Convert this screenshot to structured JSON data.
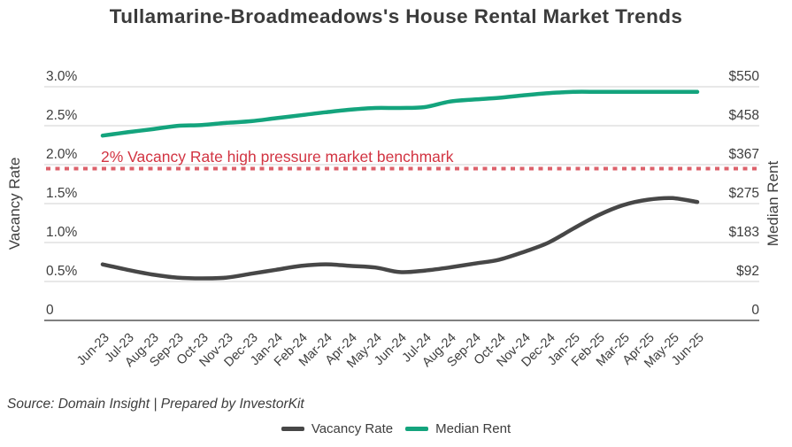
{
  "title": "Tullamarine-Broadmeadows's House Rental Market Trends",
  "source_note": "Source: Domain Insight | Prepared by InvestorKit",
  "colors": {
    "vacancy_series": "#474747",
    "rent_series": "#14a47d",
    "benchmark_line": "#d9515c",
    "benchmark_text": "#d23442",
    "gridline": "#d9d9d9",
    "axis_line": "#808080",
    "text": "#3d3d3d"
  },
  "legend": [
    {
      "label": "Vacancy Rate",
      "color": "#474747"
    },
    {
      "label": "Median Rent",
      "color": "#14a47d"
    }
  ],
  "chart_data": {
    "type": "line",
    "title": "Tullamarine-Broadmeadows's House Rental Market Trends",
    "grid": true,
    "legend_position": "bottom",
    "x": [
      "Jun-23",
      "Jul-23",
      "Aug-23",
      "Sep-23",
      "Oct-23",
      "Nov-23",
      "Dec-23",
      "Jan-24",
      "Feb-24",
      "Mar-24",
      "Apr-24",
      "May-24",
      "Jun-24",
      "Jul-24",
      "Aug-24",
      "Sep-24",
      "Oct-24",
      "Nov-24",
      "Dec-24",
      "Jan-25",
      "Feb-25",
      "Mar-25",
      "Apr-25",
      "May-25",
      "Jun-25"
    ],
    "series": [
      {
        "name": "Vacancy Rate",
        "axis": "left",
        "unit": "%",
        "color": "#474747",
        "values": [
          0.72,
          0.65,
          0.59,
          0.55,
          0.54,
          0.55,
          0.6,
          0.65,
          0.7,
          0.72,
          0.7,
          0.68,
          0.62,
          0.64,
          0.68,
          0.73,
          0.78,
          0.88,
          1.0,
          1.18,
          1.35,
          1.48,
          1.55,
          1.57,
          1.52
        ]
      },
      {
        "name": "Median Rent",
        "axis": "right",
        "unit": "$",
        "color": "#14a47d",
        "values": [
          435,
          443,
          450,
          458,
          460,
          465,
          469,
          476,
          483,
          490,
          496,
          500,
          500,
          502,
          515,
          520,
          524,
          530,
          535,
          538,
          538,
          538,
          538,
          538,
          538
        ]
      }
    ],
    "left_axis": {
      "label": "Vacancy Rate",
      "range": [
        0,
        3
      ],
      "tick_values": [
        0,
        0.5,
        1.0,
        1.5,
        2.0,
        2.5,
        3.0
      ],
      "tick_labels": [
        "0",
        "0.5%",
        "1.0%",
        "1.5%",
        "2.0%",
        "2.5%",
        "3.0%"
      ]
    },
    "right_axis": {
      "label": "Median Rent",
      "range": [
        0,
        550
      ],
      "tick_values": [
        0,
        92,
        183,
        275,
        367,
        458,
        550
      ],
      "tick_labels": [
        "0",
        "$92",
        "$183",
        "$275",
        "$367",
        "$458",
        "$550"
      ]
    },
    "benchmark": {
      "axis": "left",
      "value": 2.0,
      "style": "dotted",
      "label": "2% Vacancy Rate high pressure market benchmark"
    }
  }
}
